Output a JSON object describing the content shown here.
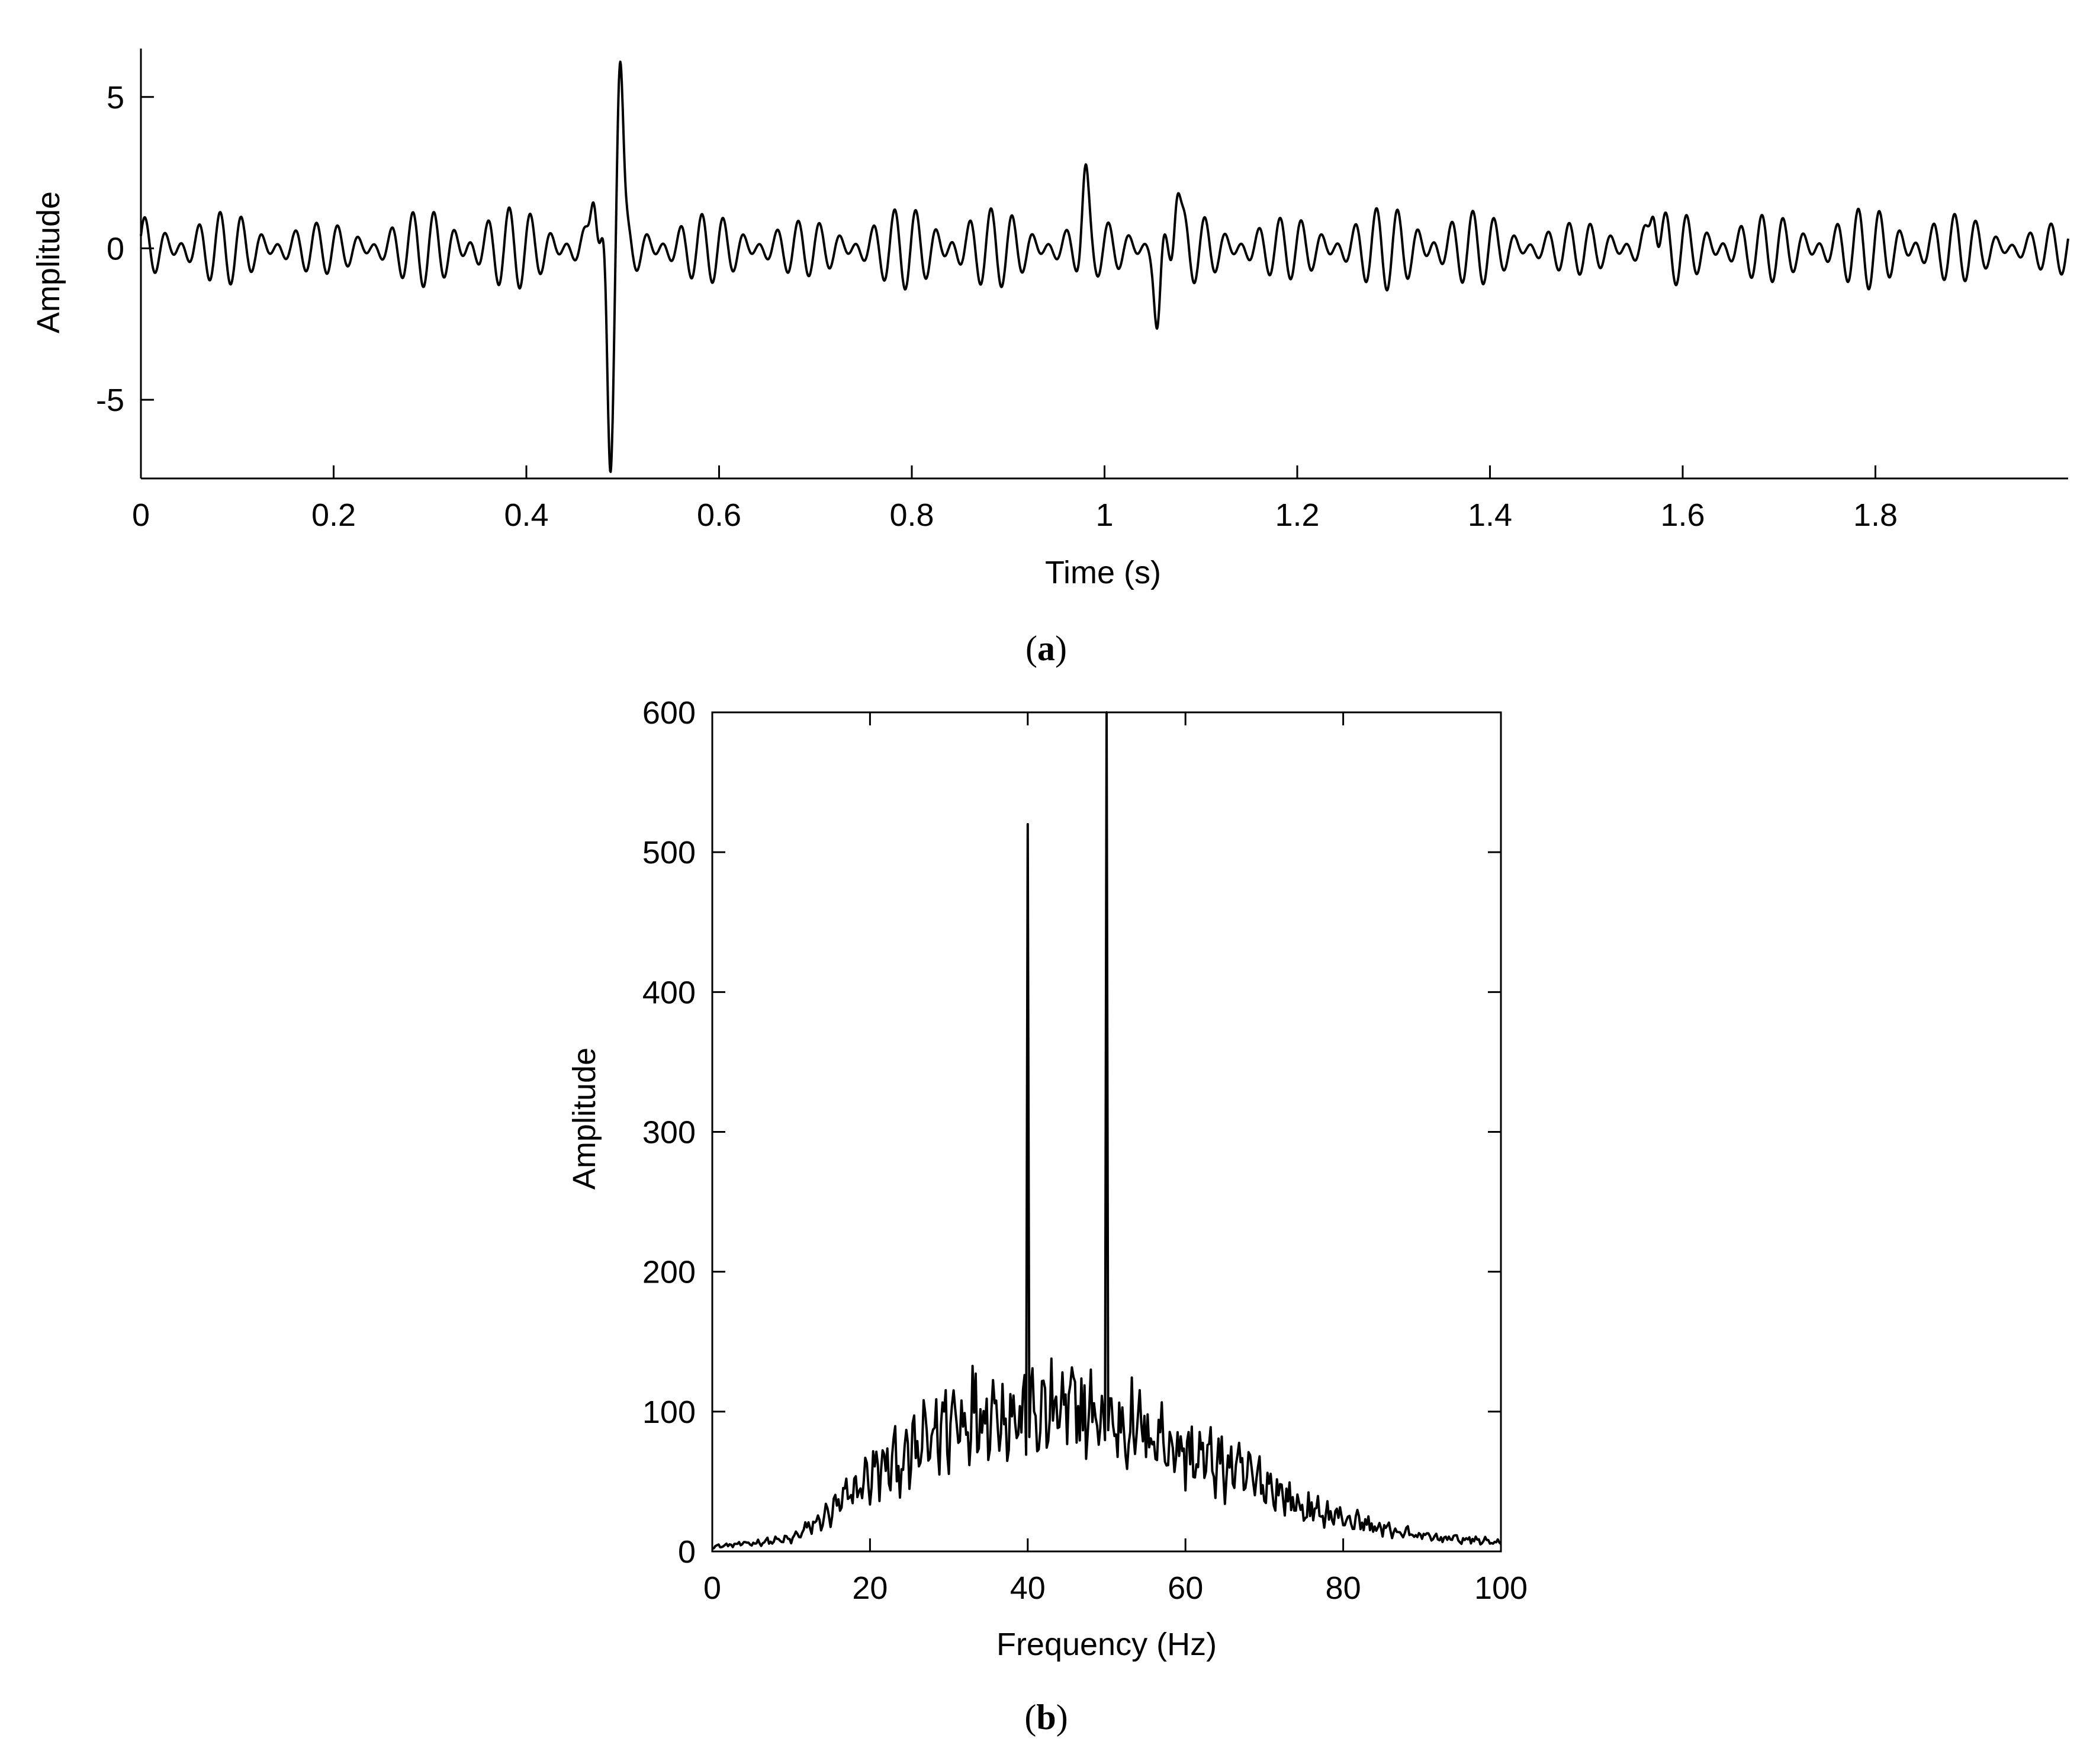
{
  "captions": {
    "a": "a",
    "b": "b"
  },
  "chart_data": [
    {
      "id": "a",
      "type": "line",
      "xlabel": "Time (s)",
      "ylabel": "Amplitude",
      "xlim": [
        0,
        2.0
      ],
      "ylim": [
        -7.6,
        6.6
      ],
      "xticks": [
        0,
        0.2,
        0.4,
        0.6,
        0.8,
        1,
        1.2,
        1.4,
        1.6,
        1.8
      ],
      "xtick_labels": [
        "0",
        "0.2",
        "0.4",
        "0.6",
        "0.8",
        "1",
        "1.2",
        "1.4",
        "1.6",
        "1.8"
      ],
      "yticks": [
        -5,
        0,
        5
      ],
      "ytick_labels": [
        "-5",
        "0",
        "5"
      ],
      "grid": false,
      "signal": {
        "components": [
          {
            "freq_hz": 40,
            "amplitude": 0.6
          },
          {
            "freq_hz": 50,
            "amplitude": 0.75
          }
        ],
        "transients": [
          {
            "t": 0.47,
            "peak": 2.3
          },
          {
            "t": 0.487,
            "peak": -7.6
          },
          {
            "t": 0.497,
            "peak": 6.6
          },
          {
            "t": 0.98,
            "peak": 2.0
          },
          {
            "t": 1.055,
            "peak": -2.6
          },
          {
            "t": 1.075,
            "peak": 2.1
          },
          {
            "t": 1.57,
            "peak": 1.9
          }
        ]
      }
    },
    {
      "id": "b",
      "type": "line",
      "xlabel": "Frequency (Hz)",
      "ylabel": "Amplitude",
      "xlim": [
        0,
        100
      ],
      "ylim": [
        0,
        600
      ],
      "xticks": [
        0,
        20,
        40,
        60,
        80,
        100
      ],
      "xtick_labels": [
        "0",
        "20",
        "40",
        "60",
        "80",
        "100"
      ],
      "yticks": [
        0,
        100,
        200,
        300,
        400,
        500,
        600
      ],
      "ytick_labels": [
        "0",
        "100",
        "200",
        "300",
        "400",
        "500",
        "600"
      ],
      "grid": false,
      "envelope": [
        [
          0,
          3
        ],
        [
          10,
          8
        ],
        [
          15,
          25
        ],
        [
          20,
          50
        ],
        [
          25,
          62
        ],
        [
          30,
          85
        ],
        [
          35,
          95
        ],
        [
          40,
          85
        ],
        [
          45,
          95
        ],
        [
          50,
          85
        ],
        [
          55,
          80
        ],
        [
          60,
          65
        ],
        [
          65,
          55
        ],
        [
          70,
          45
        ],
        [
          75,
          28
        ],
        [
          80,
          22
        ],
        [
          85,
          15
        ],
        [
          90,
          10
        ],
        [
          95,
          8
        ],
        [
          100,
          6
        ]
      ],
      "peaks": [
        {
          "freq_hz": 40,
          "amplitude": 520
        },
        {
          "freq_hz": 50,
          "amplitude": 600
        }
      ]
    }
  ]
}
